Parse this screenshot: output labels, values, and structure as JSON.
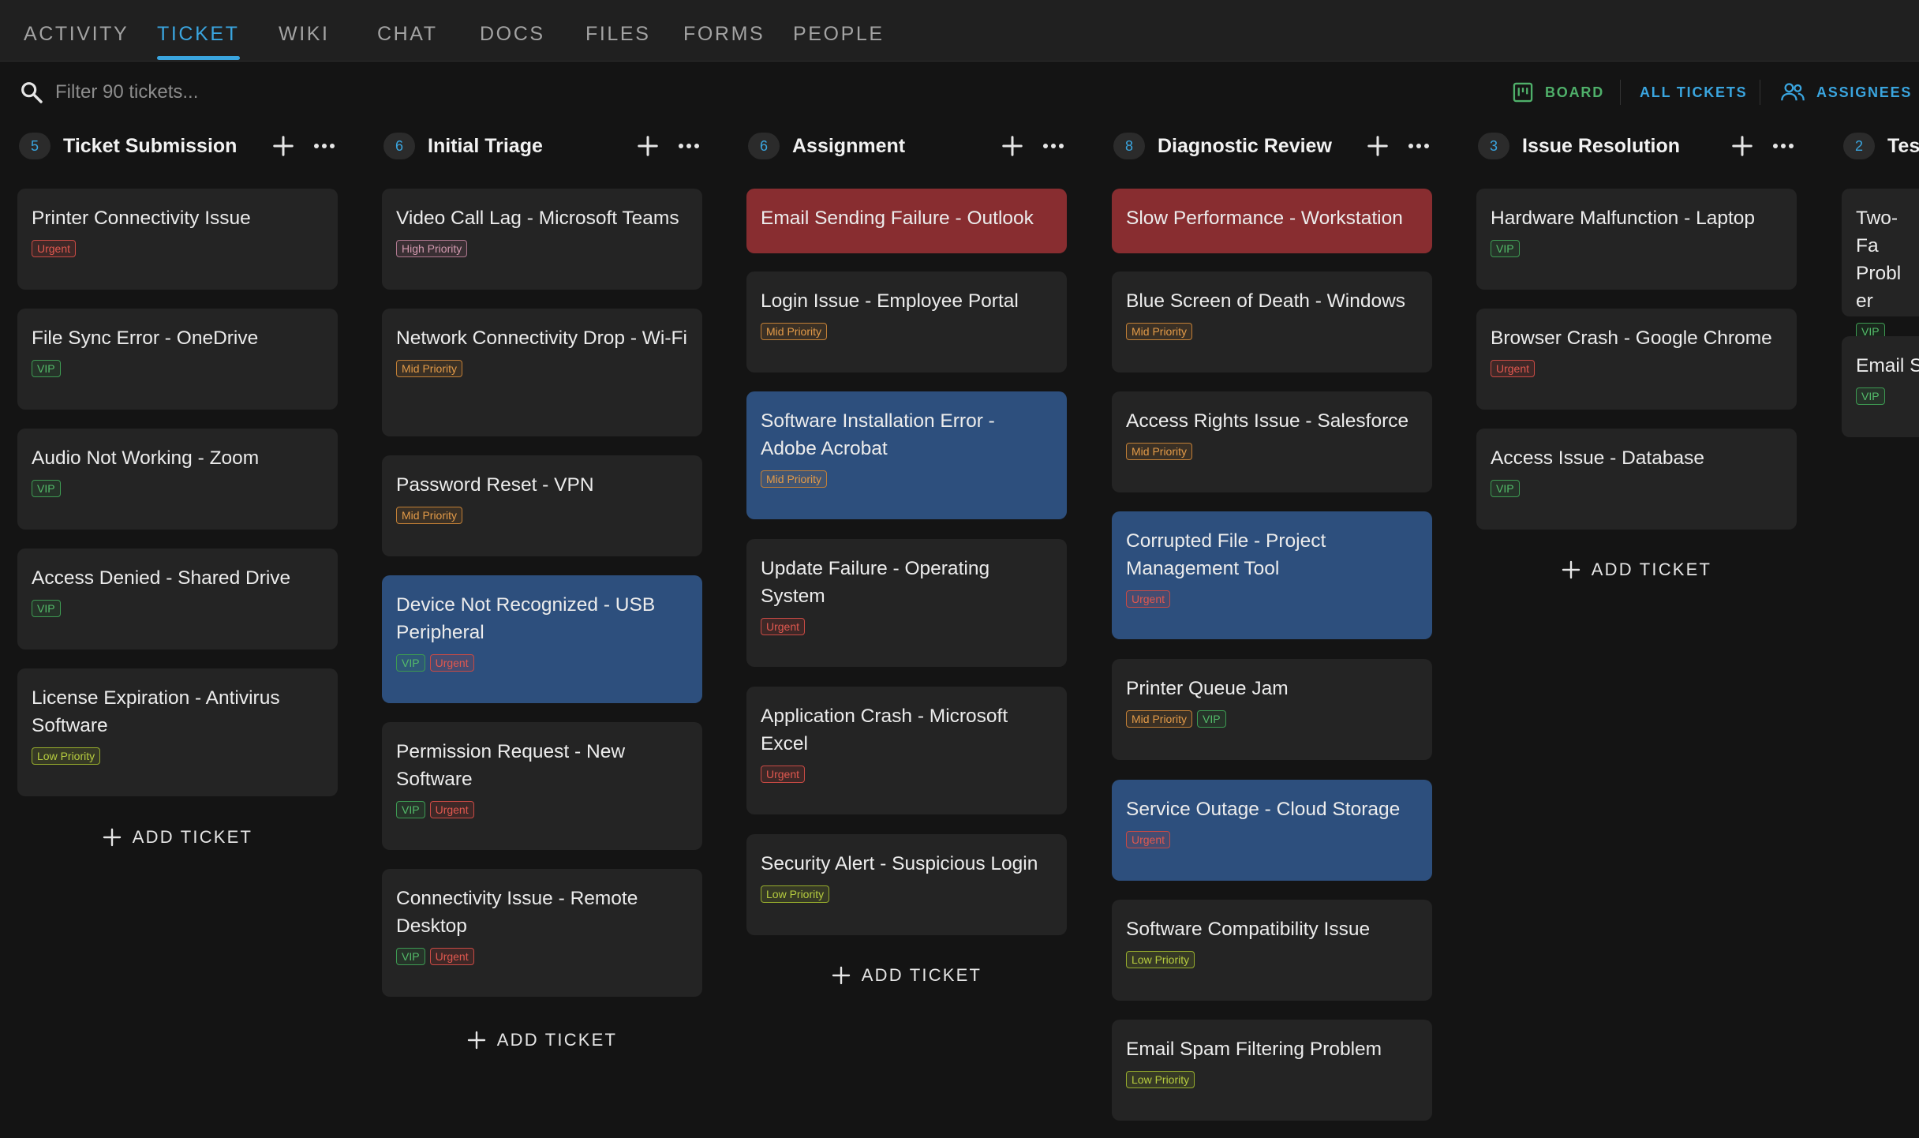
{
  "nav": {
    "tabs": [
      {
        "label": "ACTIVITY"
      },
      {
        "label": "TICKET"
      },
      {
        "label": "WIKI"
      },
      {
        "label": "CHAT"
      },
      {
        "label": "DOCS"
      },
      {
        "label": "FILES"
      },
      {
        "label": "FORMS"
      },
      {
        "label": "PEOPLE"
      }
    ],
    "active_tab": "TICKET"
  },
  "toolbar": {
    "search_placeholder": "Filter 90 tickets...",
    "board_label": "BOARD",
    "all_tickets_label": "ALL TICKETS",
    "assignees_label": "ASSIGNEES"
  },
  "colors": {
    "accent": "#3aa5df",
    "board_green": "#4fb06a",
    "card": "#242424",
    "card_red": "#882d30",
    "card_blue": "#2d4f7d"
  },
  "add_ticket_label": "ADD TICKET",
  "columns": [
    {
      "count": "5",
      "title": "Ticket Submission",
      "cards": [
        {
          "title": "Printer Connectivity Issue",
          "tags": [
            "Urgent"
          ]
        },
        {
          "title": "File Sync Error - OneDrive",
          "tags": [
            "VIP"
          ]
        },
        {
          "title": "Audio Not Working - Zoom",
          "tags": [
            "VIP"
          ]
        },
        {
          "title": "Access Denied - Shared Drive",
          "tags": [
            "VIP"
          ]
        },
        {
          "title": "License Expiration - Antivirus Software",
          "tags": [
            "Low Priority"
          ]
        }
      ]
    },
    {
      "count": "6",
      "title": "Initial Triage",
      "cards": [
        {
          "title": "Video Call Lag - Microsoft Teams",
          "tags": [
            "High Priority"
          ]
        },
        {
          "title": "Network Connectivity Drop - Wi-Fi",
          "tags": [
            "Mid Priority"
          ]
        },
        {
          "title": "Password Reset - VPN",
          "tags": [
            "Mid Priority"
          ]
        },
        {
          "title": "Device Not Recognized - USB Peripheral",
          "tags": [
            "VIP",
            "Urgent"
          ]
        },
        {
          "title": "Permission Request - New Software",
          "tags": [
            "VIP",
            "Urgent"
          ]
        },
        {
          "title": "Connectivity Issue - Remote Desktop",
          "tags": [
            "VIP",
            "Urgent"
          ]
        }
      ]
    },
    {
      "count": "6",
      "title": "Assignment",
      "cards": [
        {
          "title": "Email Sending Failure - Outlook",
          "tags": []
        },
        {
          "title": "Login Issue - Employee Portal",
          "tags": [
            "Mid Priority"
          ]
        },
        {
          "title": "Software Installation Error - Adobe Acrobat",
          "tags": [
            "Mid Priority"
          ]
        },
        {
          "title": "Update Failure - Operating System",
          "tags": [
            "Urgent"
          ]
        },
        {
          "title": "Application Crash - Microsoft Excel",
          "tags": [
            "Urgent"
          ]
        },
        {
          "title": "Security Alert - Suspicious Login",
          "tags": [
            "Low Priority"
          ]
        }
      ]
    },
    {
      "count": "8",
      "title": "Diagnostic Review",
      "cards": [
        {
          "title": "Slow Performance - Workstation",
          "tags": []
        },
        {
          "title": "Blue Screen of Death - Windows",
          "tags": [
            "Mid Priority"
          ]
        },
        {
          "title": "Access Rights Issue - Salesforce",
          "tags": [
            "Mid Priority"
          ]
        },
        {
          "title": "Corrupted File - Project Management Tool",
          "tags": [
            "Urgent"
          ]
        },
        {
          "title": "Printer Queue Jam",
          "tags": [
            "Mid Priority",
            "VIP"
          ]
        },
        {
          "title": "Service Outage - Cloud Storage",
          "tags": [
            "Urgent"
          ]
        },
        {
          "title": "Software Compatibility Issue",
          "tags": [
            "Low Priority"
          ]
        },
        {
          "title": "Email Spam Filtering Problem",
          "tags": [
            "Low Priority"
          ]
        }
      ]
    },
    {
      "count": "3",
      "title": "Issue Resolution",
      "cards": [
        {
          "title": "Hardware Malfunction - Laptop",
          "tags": [
            "VIP"
          ]
        },
        {
          "title": "Browser Crash - Google Chrome",
          "tags": [
            "Urgent"
          ]
        },
        {
          "title": "Access Issue - Database",
          "tags": [
            "VIP"
          ]
        }
      ]
    },
    {
      "count": "2",
      "title": "Tes",
      "cards": [
        {
          "title": "Two-Fa Probler",
          "tags": [
            "VIP"
          ]
        },
        {
          "title": "Email S",
          "tags": [
            "VIP"
          ]
        }
      ]
    }
  ]
}
